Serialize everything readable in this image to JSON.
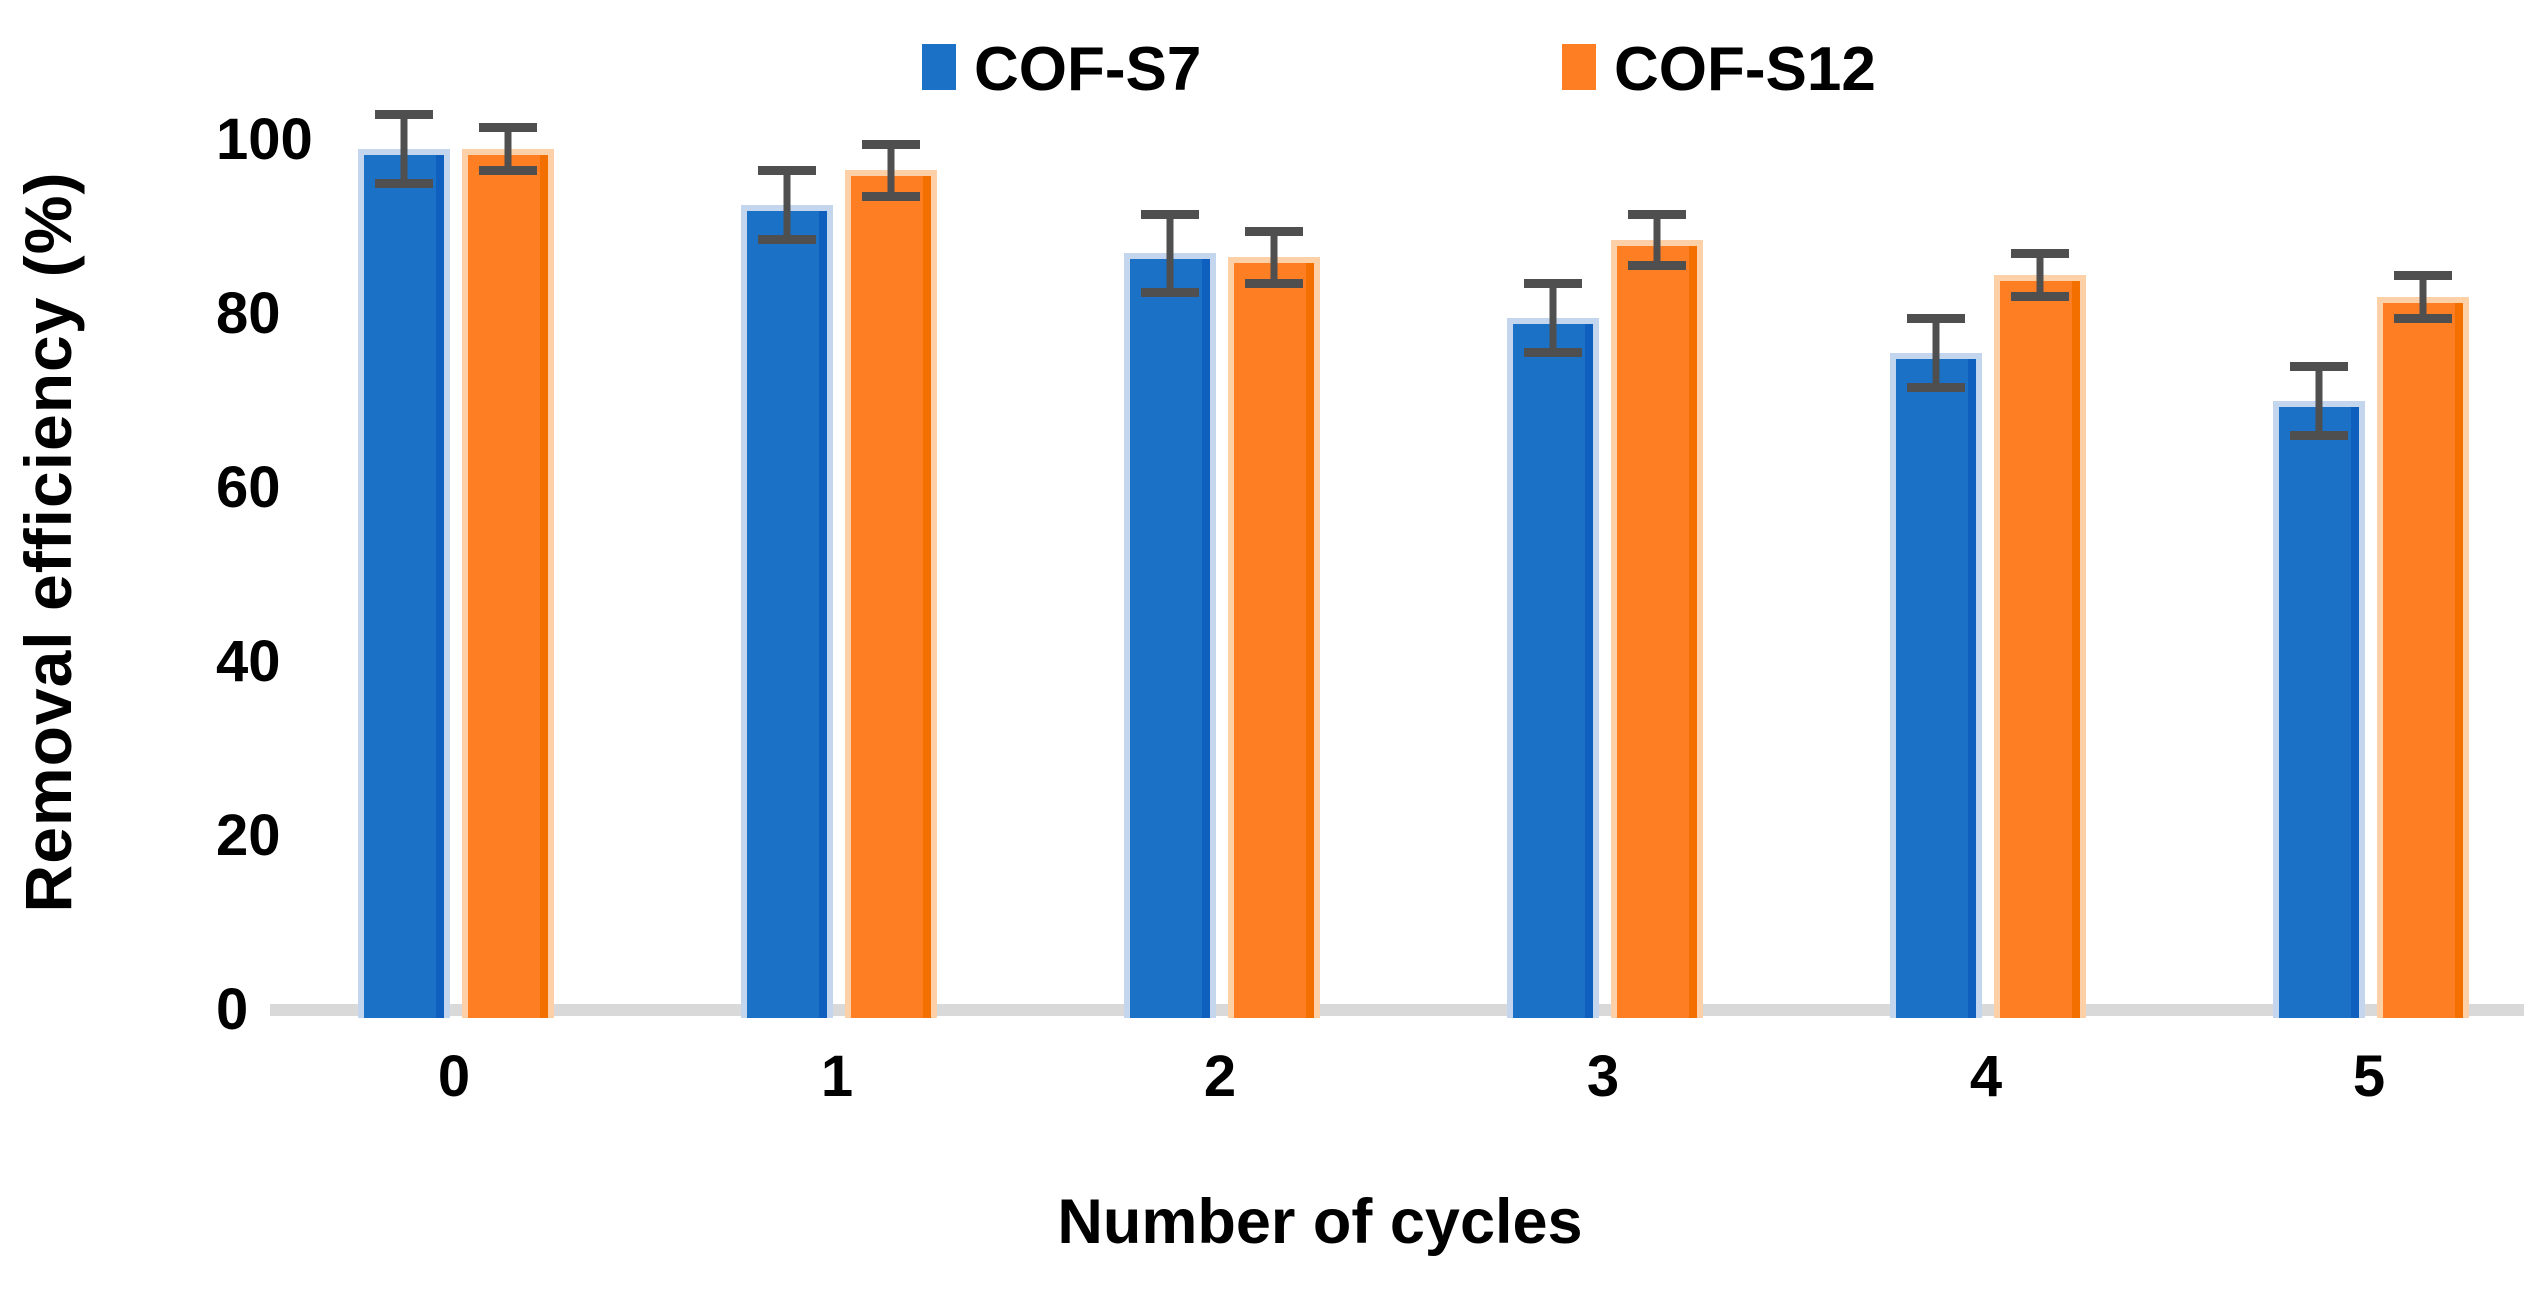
{
  "chart_data": {
    "type": "bar",
    "title": "",
    "categories": [
      "0",
      "1",
      "2",
      "3",
      "4",
      "5"
    ],
    "xlabel": "Number of cycles",
    "ylabel": "Removal efficiency (%)",
    "ylim": [
      0,
      100
    ],
    "yticks": [
      0,
      20,
      40,
      60,
      80,
      100
    ],
    "grid": false,
    "legend_position": "top",
    "series": [
      {
        "name": "COF-S7",
        "color": "#1B71C6",
        "color_dark": "#0E5FBE",
        "color_light": "#C3D6EE",
        "values": [
          99,
          92.5,
          87,
          79.5,
          75.5,
          70
        ],
        "errors": [
          4.5,
          4.5,
          5,
          4.5,
          4.5,
          4.5
        ]
      },
      {
        "name": "COF-S12",
        "color": "#FD7E23",
        "color_dark": "#F26F00",
        "color_light": "#FDD0A8",
        "values": [
          99,
          96.5,
          86.5,
          88.5,
          84.5,
          82
        ],
        "errors": [
          3,
          3.5,
          3.5,
          3.5,
          3,
          3
        ]
      }
    ],
    "error_bar_color": "#4F4F4F",
    "axis_line_color": "#D9D9D9",
    "text_color": "#000000"
  }
}
